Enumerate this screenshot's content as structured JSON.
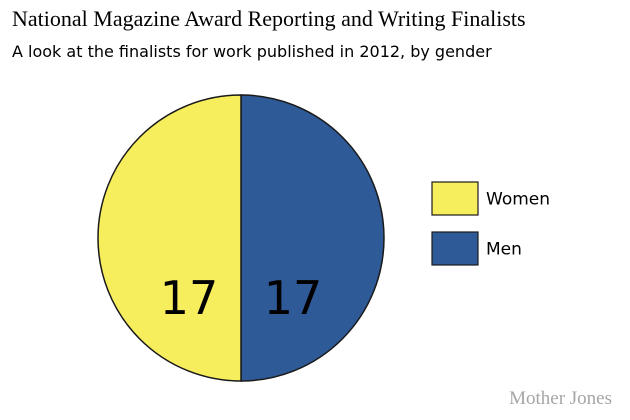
{
  "chart_data": {
    "type": "pie",
    "title": "National Magazine Award Reporting and Writing Finalists",
    "subtitle": "A look at the finalists for work published in 2012, by gender",
    "slices": [
      {
        "label": "Men",
        "value": 17,
        "color": "#2e5a97"
      },
      {
        "label": "Women",
        "value": 17,
        "color": "#f7ee5d"
      }
    ],
    "legend_position": "right",
    "legend": [
      {
        "label": "Women",
        "color": "#f7ee5d"
      },
      {
        "label": "Men",
        "color": "#2e5a97"
      }
    ]
  },
  "credit": "Mother Jones"
}
